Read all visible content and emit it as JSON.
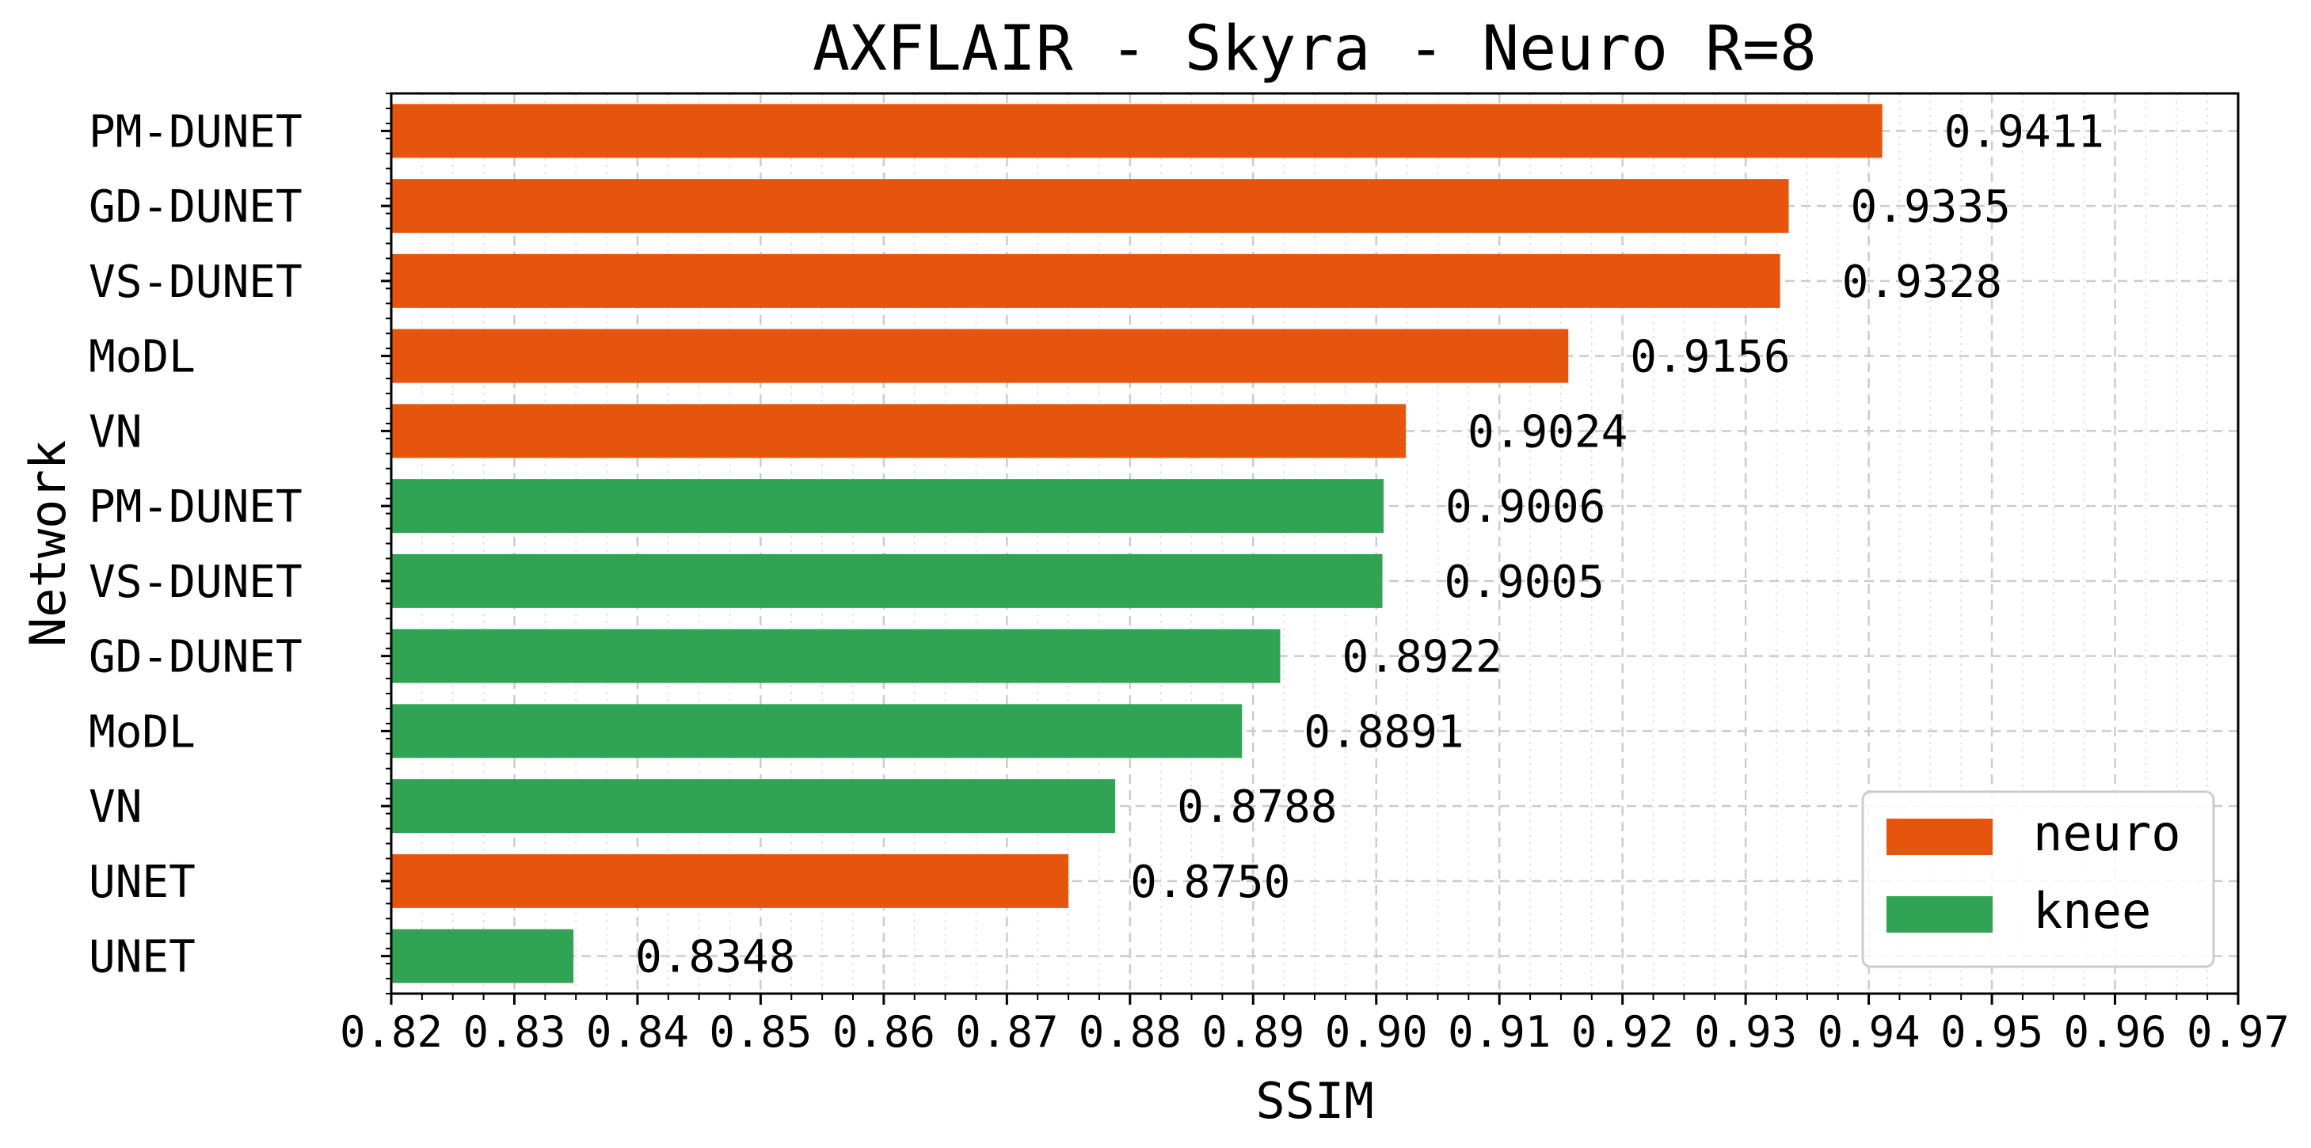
{
  "chart_data": {
    "type": "bar",
    "orientation": "horizontal",
    "title": "AXFLAIR - Skyra - Neuro R=8",
    "xlabel": "SSIM",
    "ylabel": "Network",
    "xlim": [
      0.82,
      0.97
    ],
    "x_ticks": [
      "0.82",
      "0.83",
      "0.84",
      "0.85",
      "0.86",
      "0.87",
      "0.88",
      "0.89",
      "0.90",
      "0.91",
      "0.92",
      "0.93",
      "0.94",
      "0.95",
      "0.96",
      "0.97"
    ],
    "grid": true,
    "legend_position": "bottom-right",
    "legend": [
      {
        "name": "neuro",
        "color": "#e6550d"
      },
      {
        "name": "knee",
        "color": "#31a354"
      }
    ],
    "bars": [
      {
        "category": "PM-DUNET",
        "value": 0.9411,
        "label": "0.9411",
        "series": "neuro"
      },
      {
        "category": "GD-DUNET",
        "value": 0.9335,
        "label": "0.9335",
        "series": "neuro"
      },
      {
        "category": "VS-DUNET",
        "value": 0.9328,
        "label": "0.9328",
        "series": "neuro"
      },
      {
        "category": "MoDL",
        "value": 0.9156,
        "label": "0.9156",
        "series": "neuro"
      },
      {
        "category": "VN",
        "value": 0.9024,
        "label": "0.9024",
        "series": "neuro"
      },
      {
        "category": "PM-DUNET",
        "value": 0.9006,
        "label": "0.9006",
        "series": "knee"
      },
      {
        "category": "VS-DUNET",
        "value": 0.9005,
        "label": "0.9005",
        "series": "knee"
      },
      {
        "category": "GD-DUNET",
        "value": 0.8922,
        "label": "0.8922",
        "series": "knee"
      },
      {
        "category": "MoDL",
        "value": 0.8891,
        "label": "0.8891",
        "series": "knee"
      },
      {
        "category": "VN",
        "value": 0.8788,
        "label": "0.8788",
        "series": "knee"
      },
      {
        "category": "UNET",
        "value": 0.875,
        "label": "0.8750",
        "series": "neuro"
      },
      {
        "category": "UNET",
        "value": 0.8348,
        "label": "0.8348",
        "series": "knee"
      }
    ]
  }
}
